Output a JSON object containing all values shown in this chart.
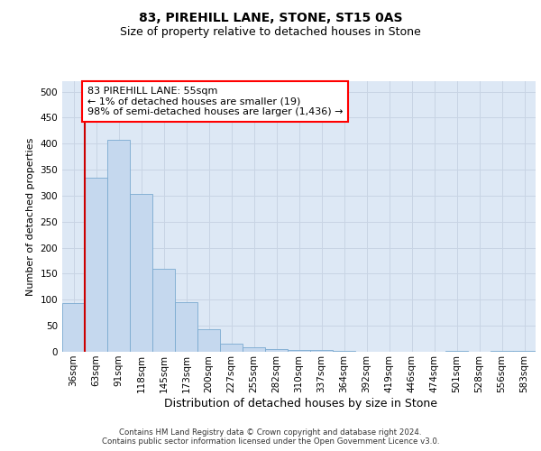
{
  "title1": "83, PIREHILL LANE, STONE, ST15 0AS",
  "title2": "Size of property relative to detached houses in Stone",
  "xlabel": "Distribution of detached houses by size in Stone",
  "ylabel": "Number of detached properties",
  "categories": [
    "36sqm",
    "63sqm",
    "91sqm",
    "118sqm",
    "145sqm",
    "173sqm",
    "200sqm",
    "227sqm",
    "255sqm",
    "282sqm",
    "310sqm",
    "337sqm",
    "364sqm",
    "392sqm",
    "419sqm",
    "446sqm",
    "474sqm",
    "501sqm",
    "528sqm",
    "556sqm",
    "583sqm"
  ],
  "values": [
    93,
    335,
    408,
    304,
    160,
    95,
    44,
    15,
    9,
    5,
    4,
    4,
    2,
    0,
    0,
    0,
    0,
    2,
    0,
    2,
    2
  ],
  "bar_color": "#c5d8ee",
  "bar_edge_color": "#7aaad0",
  "annotation_box_text": "83 PIREHILL LANE: 55sqm\n← 1% of detached houses are smaller (19)\n98% of semi-detached houses are larger (1,436) →",
  "vline_color": "#cc0000",
  "grid_color": "#c8d4e4",
  "plot_bg_color": "#dde8f5",
  "footer_text": "Contains HM Land Registry data © Crown copyright and database right 2024.\nContains public sector information licensed under the Open Government Licence v3.0.",
  "ylim_max": 520,
  "yticks": [
    0,
    50,
    100,
    150,
    200,
    250,
    300,
    350,
    400,
    450,
    500
  ],
  "title1_fontsize": 10,
  "title2_fontsize": 9,
  "ylabel_fontsize": 8,
  "xlabel_fontsize": 9,
  "tick_fontsize": 7.5,
  "ann_fontsize": 8
}
